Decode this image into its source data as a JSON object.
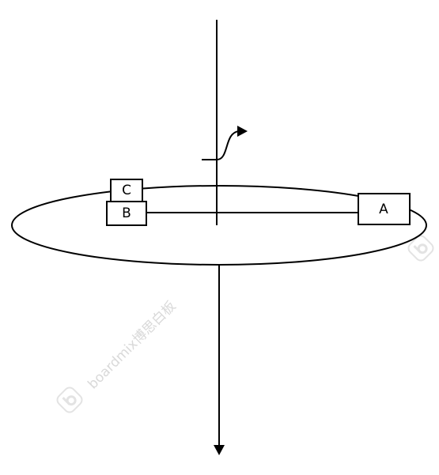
{
  "diagram": {
    "blocks": {
      "a": {
        "label": "A"
      },
      "b": {
        "label": "B"
      },
      "c": {
        "label": "C"
      }
    },
    "watermark": {
      "text": "boardmix博思白板"
    },
    "colors": {
      "stroke": "#000000",
      "background": "#ffffff",
      "watermark": "#d9d9d9"
    }
  }
}
